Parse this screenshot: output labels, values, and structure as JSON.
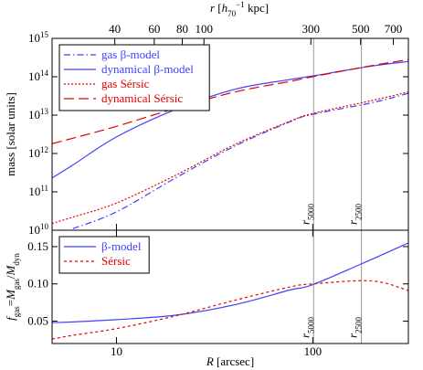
{
  "chart_data": [
    {
      "type": "line",
      "x": [
        4.7,
        6,
        10,
        20,
        40,
        77,
        100,
        200,
        307
      ],
      "xlim": [
        4.7,
        307
      ],
      "log_x": true,
      "xticks": [
        10,
        100
      ],
      "xtick_labels": false,
      "ylim": [
        10000000000.0,
        1000000000000000.0
      ],
      "log_y": true,
      "yticks": [
        {
          "value": 10000000000.0,
          "label": "10",
          "sup": "10"
        },
        {
          "value": 100000000000.0,
          "label": "10",
          "sup": "11"
        },
        {
          "value": 1000000000000.0,
          "label": "10",
          "sup": "12"
        },
        {
          "value": 10000000000000.0,
          "label": "10",
          "sup": "13"
        },
        {
          "value": 100000000000000.0,
          "label": "10",
          "sup": "14"
        },
        {
          "value": 1000000000000000.0,
          "label": "10",
          "sup": "15"
        }
      ],
      "ylabel": [
        {
          "text": "mass [solar units]",
          "style": "normal"
        }
      ],
      "x2lim": [
        21,
        817
      ],
      "x2ticks": [
        40,
        60,
        80,
        100,
        300,
        500,
        700
      ],
      "x2label": [
        {
          "text": "r",
          "style": "italic"
        },
        {
          "text": " [",
          "style": "normal"
        },
        {
          "text": "h",
          "style": "italic"
        },
        {
          "text": "70",
          "style": "sub"
        },
        {
          "text": "−1",
          "style": "sup"
        },
        {
          "text": " kpc]",
          "style": "normal"
        }
      ],
      "markers": [
        {
          "x": 101,
          "label": [
            {
              "text": "r",
              "style": "italic"
            },
            {
              "text": "5000",
              "style": "sub"
            }
          ]
        },
        {
          "x": 177,
          "label": [
            {
              "text": "r",
              "style": "italic"
            },
            {
              "text": "2500",
              "style": "sub"
            }
          ]
        }
      ],
      "legend": "upper left",
      "series": [
        {
          "name": "gas β-model",
          "color": "#4040ff",
          "dash": "dashdot",
          "values": [
            null,
            11000000000.0,
            30000000000.0,
            230000000000.0,
            1550000000000.0,
            6800000000000.0,
            10500000000000.0,
            21000000000000.0,
            37000000000000.0
          ]
        },
        {
          "name": "dynamical β-model",
          "color": "#4040ff",
          "dash": "solid",
          "values": [
            230000000000.0,
            500000000000.0,
            2700000000000.0,
            14000000000000.0,
            47000000000000.0,
            85000000000000.0,
            105000000000000.0,
            190000000000000.0,
            250000000000000.0
          ]
        },
        {
          "name": "gas Sérsic",
          "color": "#e00000",
          "dash": "dotted",
          "values": [
            15000000000.0,
            22000000000.0,
            51000000000.0,
            270000000000.0,
            1700000000000.0,
            7000000000000.0,
            11000000000000.0,
            24000000000000.0,
            40000000000000.0
          ]
        },
        {
          "name": "dynamical Sérsic",
          "color": "#e00000",
          "dash": "dashed",
          "values": [
            1800000000000.0,
            2500000000000.0,
            5100000000000.0,
            15000000000000.0,
            40000000000000.0,
            76000000000000.0,
            100000000000000.0,
            195000000000000.0,
            280000000000000.0
          ]
        }
      ]
    },
    {
      "type": "line",
      "x": [
        4.7,
        6,
        10,
        20,
        40,
        77,
        100,
        200,
        307
      ],
      "xlim": [
        4.7,
        307
      ],
      "log_x": true,
      "xticks": [
        10,
        100
      ],
      "xtick_labels": true,
      "xlabel": [
        {
          "text": "R",
          "style": "italic"
        },
        {
          "text": " [arcsec]",
          "style": "normal"
        }
      ],
      "ylim": [
        0.02,
        0.172
      ],
      "yticks": [
        0.05,
        {
          "value": 0.1,
          "label": "0.10"
        },
        0.15
      ],
      "ylabel": [
        {
          "text": "f",
          "style": "italic"
        },
        {
          "text": "gas",
          "style": "sub"
        },
        {
          "text": "=",
          "style": "normal"
        },
        {
          "text": "M",
          "style": "italic"
        },
        {
          "text": "gas",
          "style": "sub"
        },
        {
          "text": "/",
          "style": "normal"
        },
        {
          "text": "M",
          "style": "italic"
        },
        {
          "text": "dyn",
          "style": "sub"
        }
      ],
      "markers": [
        {
          "x": 101,
          "label": [
            {
              "text": "r",
              "style": "italic"
            },
            {
              "text": "5000",
              "style": "sub"
            }
          ]
        },
        {
          "x": 177,
          "label": [
            {
              "text": "r",
              "style": "italic"
            },
            {
              "text": "2500",
              "style": "sub"
            }
          ]
        }
      ],
      "legend": "upper left",
      "series": [
        {
          "name": "β-model",
          "color": "#4040ff",
          "dash": "solid",
          "values": [
            0.048,
            0.049,
            0.052,
            0.058,
            0.072,
            0.092,
            0.099,
            0.133,
            0.155
          ]
        },
        {
          "name": "Sérsic",
          "color": "#e00000",
          "dash": "dashed3",
          "values": [
            0.026,
            0.031,
            0.04,
            0.057,
            0.078,
            0.096,
            0.1,
            0.104,
            0.091
          ]
        }
      ]
    }
  ]
}
